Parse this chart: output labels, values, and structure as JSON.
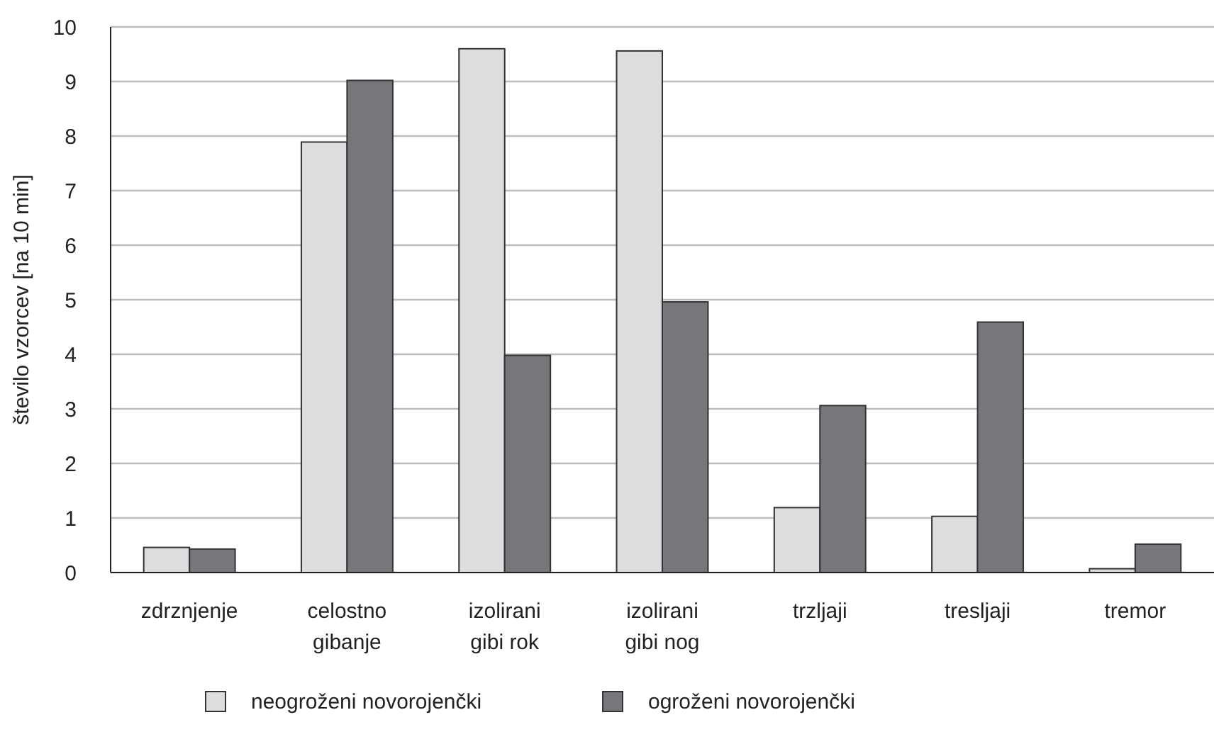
{
  "chart_data": {
    "type": "bar",
    "ylabel": "število vzorcev [na 10 min]",
    "categories": [
      "zdrznjenje",
      "celostno gibanje",
      "izolirani gibi rok",
      "izolirani gibi nog",
      "trzljaji",
      "tresljaji",
      "tremor"
    ],
    "series": [
      {
        "name": "neogroženi novorojenčki",
        "color": "#dcdddf",
        "values": [
          0.46,
          7.89,
          9.6,
          9.56,
          1.19,
          1.03,
          0.07
        ]
      },
      {
        "name": "ogroženi novorojenčki",
        "color": "#76777b",
        "values": [
          0.43,
          9.02,
          3.98,
          4.96,
          3.06,
          4.59,
          0.52
        ]
      }
    ],
    "ylim": [
      0,
      10
    ],
    "yticks": [
      0,
      1,
      2,
      3,
      4,
      5,
      6,
      7,
      8,
      9,
      10
    ],
    "grid": "y",
    "legend": "bottom"
  }
}
